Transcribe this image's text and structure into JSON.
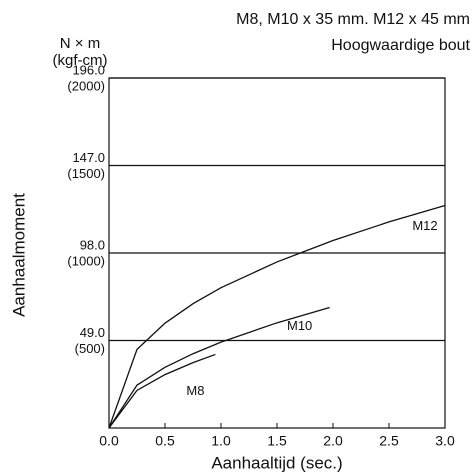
{
  "chart_data": {
    "type": "line",
    "subtitle_lines": [
      "M8, M10 x 35 mm. M12 x 45 mm",
      "Hoogwaardige bout"
    ],
    "y_unit_lines": [
      "N × m",
      "(kgf-cm)"
    ],
    "xlabel": "Aanhaaltijd (sec.)",
    "ylabel": "Aanhaalmoment",
    "xlim": [
      0,
      3
    ],
    "xticks": [
      {
        "value": 0,
        "label": "0.0"
      },
      {
        "value": 0.5,
        "label": "0.5"
      },
      {
        "value": 1,
        "label": "1.0"
      },
      {
        "value": 1.5,
        "label": "1.5"
      },
      {
        "value": 2,
        "label": "2.0"
      },
      {
        "value": 2.5,
        "label": "2.5"
      },
      {
        "value": 3,
        "label": "3.0"
      }
    ],
    "ylim": [
      0,
      196
    ],
    "yticks": [
      {
        "value": 49,
        "label": "49.0"
      },
      {
        "value": 98,
        "label": "98.0"
      },
      {
        "value": 147,
        "label": "147.0"
      },
      {
        "value": 196,
        "label": "196.0"
      }
    ],
    "y2lim": [
      0,
      2000
    ],
    "y2ticks": [
      {
        "value": 500,
        "label": "(500)"
      },
      {
        "value": 1000,
        "label": "(1000)"
      },
      {
        "value": 1500,
        "label": "(1500)"
      },
      {
        "value": 2000,
        "label": "(2000)"
      }
    ],
    "grid": true,
    "series": [
      {
        "name": "M12",
        "color": "#111111",
        "x": [
          0,
          0.25,
          0.5,
          0.75,
          1,
          1.5,
          2,
          2.5,
          3
        ],
        "values": [
          0,
          44,
          58.7,
          69.6,
          78.6,
          93,
          105,
          115.4,
          124.6
        ]
      },
      {
        "name": "M10",
        "color": "#111111",
        "x": [
          0,
          0.25,
          0.5,
          0.75,
          1,
          1.5,
          1.97
        ],
        "values": [
          0,
          24,
          34,
          41.6,
          48.1,
          58.9,
          67.5
        ]
      },
      {
        "name": "M8",
        "color": "#111111",
        "x": [
          0,
          0.25,
          0.5,
          0.75,
          0.95
        ],
        "values": [
          0,
          21.1,
          29.9,
          36.6,
          41.2
        ]
      }
    ]
  }
}
